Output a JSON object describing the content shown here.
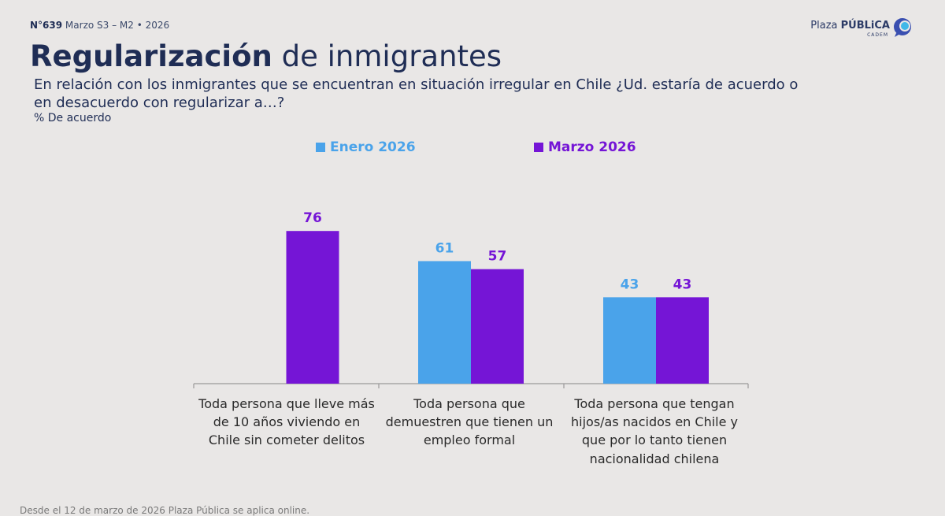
{
  "header": {
    "issue_number": "N°639",
    "issue_rest": "Marzo S3 – M2 • 2026",
    "brand_plaza": "Plaza",
    "brand_publica": "PÚBLiCA",
    "brand_sub": "CADEM"
  },
  "title": {
    "bold": "Regularización",
    "regular": "de inmigrantes"
  },
  "question": "En relación con los inmigrantes que se encuentran en situación irregular en Chile ¿Ud. estaría de acuerdo o en desacuerdo con regularizar a…?",
  "unit_label": "% De acuerdo",
  "colors": {
    "enero": "#4aa3ea",
    "marzo": "#7515d6",
    "navy": "#1f2d55"
  },
  "chart_data": {
    "type": "bar",
    "title": "Regularización de inmigrantes",
    "ylabel": "% De acuerdo",
    "ylim": [
      0,
      100
    ],
    "legend_position": "top",
    "categories": [
      "Toda persona que lleve más de 10 años viviendo en Chile sin cometer delitos",
      "Toda persona que demuestren que tienen un empleo formal",
      "Toda persona que tengan hijos/as nacidos en Chile y que por lo tanto tienen nacionalidad chilena"
    ],
    "series": [
      {
        "name": "Enero 2026",
        "values": [
          null,
          61,
          43
        ]
      },
      {
        "name": "Marzo 2026",
        "values": [
          76,
          57,
          43
        ]
      }
    ]
  },
  "footer": "Desde el 12 de marzo de 2026 Plaza Pública se aplica online."
}
